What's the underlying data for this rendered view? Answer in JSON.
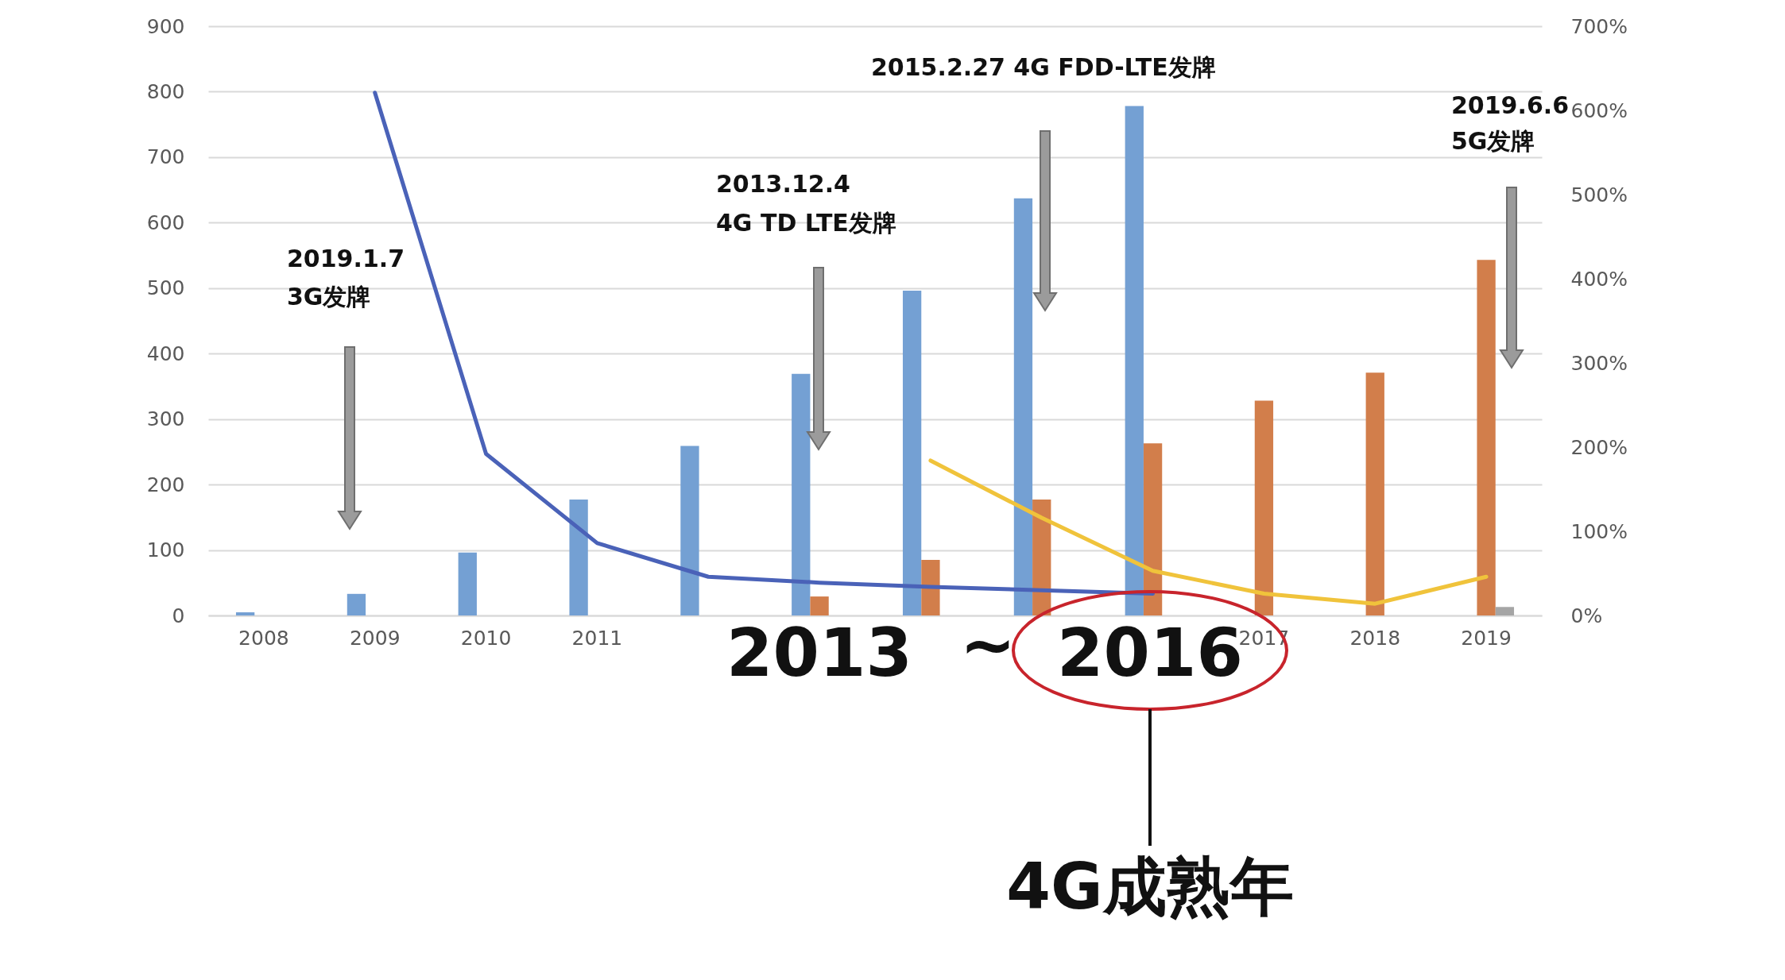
{
  "chart_data": {
    "type": "bar",
    "categories": [
      "2008",
      "2009",
      "2010",
      "2011",
      null,
      null,
      null,
      null,
      null,
      "2017",
      "2018",
      "2019"
    ],
    "series": [
      {
        "color": "#74a0d3",
        "values": [
          5,
          33,
          96,
          177,
          259,
          369,
          496,
          637,
          778,
          null,
          null,
          null
        ]
      },
      {
        "color": "#d27e4b",
        "values": [
          null,
          null,
          null,
          null,
          null,
          29,
          85,
          177,
          263,
          328,
          371,
          543
        ]
      },
      {
        "color": "#a5a5a5",
        "values": [
          null,
          null,
          null,
          null,
          null,
          null,
          null,
          null,
          null,
          null,
          null,
          13
        ]
      },
      {
        "type": "line",
        "axis": "y2",
        "color": "#4a62b8",
        "values": [
          null,
          621,
          192,
          86,
          46,
          39,
          34,
          30,
          26,
          null,
          null,
          null
        ]
      },
      {
        "type": "line",
        "axis": "y2",
        "color": "#f0c33b",
        "values": [
          null,
          null,
          null,
          null,
          null,
          null,
          184,
          116,
          53,
          26,
          14,
          46
        ]
      }
    ],
    "ylim": [
      0,
      900
    ],
    "yticks": [
      0,
      100,
      200,
      300,
      400,
      500,
      600,
      700,
      800,
      900
    ],
    "y2lim": [
      0,
      700
    ],
    "y2ticks": [
      {
        "value": 0,
        "label": "0%"
      },
      {
        "value": 100,
        "label": "100%"
      },
      {
        "value": 200,
        "label": "200%"
      },
      {
        "value": 300,
        "label": "300%"
      },
      {
        "value": 400,
        "label": "400%"
      },
      {
        "value": 500,
        "label": "500%"
      },
      {
        "value": 600,
        "label": "600%"
      },
      {
        "value": 700,
        "label": "700%"
      }
    ],
    "grid": "y",
    "line_style": "solid",
    "annotations": [
      "2019.1.7",
      "3G发牌",
      "2013.12.4",
      "4G TD LTE发牌",
      "2015.2.27 4G FDD-LTE发牌",
      "2019.6.6",
      "5G发牌",
      "2013",
      "~",
      "2016",
      "4G成熟年"
    ]
  }
}
